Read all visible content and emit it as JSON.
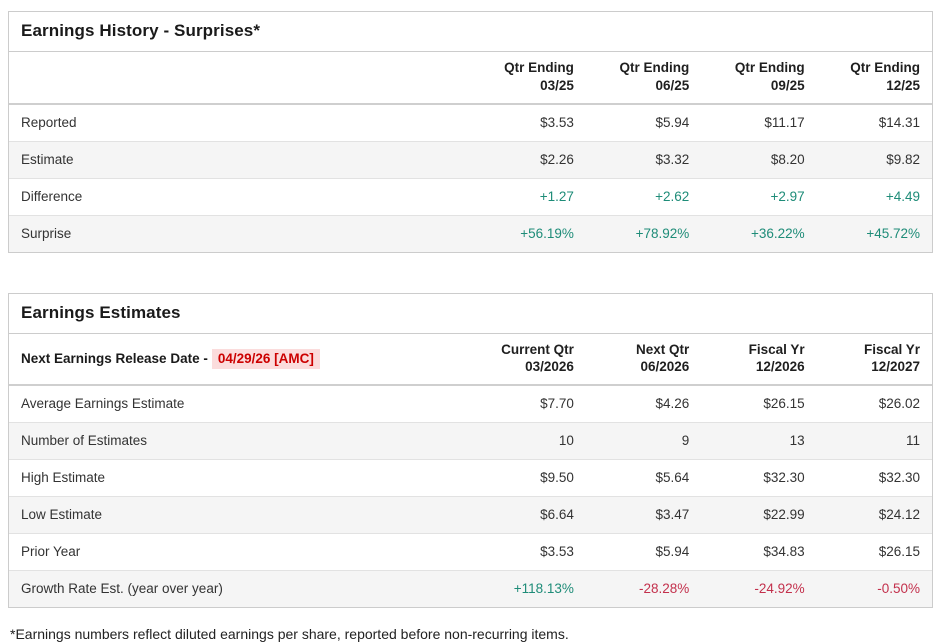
{
  "colors": {
    "positive": "#1e8c78",
    "negative": "#c3304c",
    "date_red": "#cc0000",
    "date_bg": "#fbdcdc",
    "alt_row_bg": "#f5f5f5",
    "border": "#cccccc"
  },
  "history": {
    "title": "Earnings History - Surprises*",
    "columns": [
      {
        "line1": "Qtr Ending",
        "line2": "03/25"
      },
      {
        "line1": "Qtr Ending",
        "line2": "06/25"
      },
      {
        "line1": "Qtr Ending",
        "line2": "09/25"
      },
      {
        "line1": "Qtr Ending",
        "line2": "12/25"
      }
    ],
    "rows": [
      {
        "label": "Reported",
        "values": [
          "$3.53",
          "$5.94",
          "$11.17",
          "$14.31"
        ]
      },
      {
        "label": "Estimate",
        "values": [
          "$2.26",
          "$3.32",
          "$8.20",
          "$9.82"
        ]
      },
      {
        "label": "Difference",
        "values": [
          "+1.27",
          "+2.62",
          "+2.97",
          "+4.49"
        ]
      },
      {
        "label": "Surprise",
        "values": [
          "+56.19%",
          "+78.92%",
          "+36.22%",
          "+45.72%"
        ]
      }
    ]
  },
  "estimates": {
    "title": "Earnings Estimates",
    "release_label": "Next Earnings Release Date -",
    "release_date": "04/29/26 [AMC]",
    "columns": [
      {
        "line1": "Current Qtr",
        "line2": "03/2026"
      },
      {
        "line1": "Next Qtr",
        "line2": "06/2026"
      },
      {
        "line1": "Fiscal Yr",
        "line2": "12/2026"
      },
      {
        "line1": "Fiscal Yr",
        "line2": "12/2027"
      }
    ],
    "rows": [
      {
        "label": "Average Earnings Estimate",
        "values": [
          "$7.70",
          "$4.26",
          "$26.15",
          "$26.02"
        ]
      },
      {
        "label": "Number of Estimates",
        "values": [
          "10",
          "9",
          "13",
          "11"
        ]
      },
      {
        "label": "High Estimate",
        "values": [
          "$9.50",
          "$5.64",
          "$32.30",
          "$32.30"
        ]
      },
      {
        "label": "Low Estimate",
        "values": [
          "$6.64",
          "$3.47",
          "$22.99",
          "$24.12"
        ]
      },
      {
        "label": "Prior Year",
        "values": [
          "$3.53",
          "$5.94",
          "$34.83",
          "$26.15"
        ]
      },
      {
        "label": "Growth Rate Est. (year over year)",
        "values": [
          "+118.13%",
          "-28.28%",
          "-24.92%",
          "-0.50%"
        ]
      }
    ]
  },
  "footnote": "*Earnings numbers reflect diluted earnings per share, reported before non-recurring items."
}
